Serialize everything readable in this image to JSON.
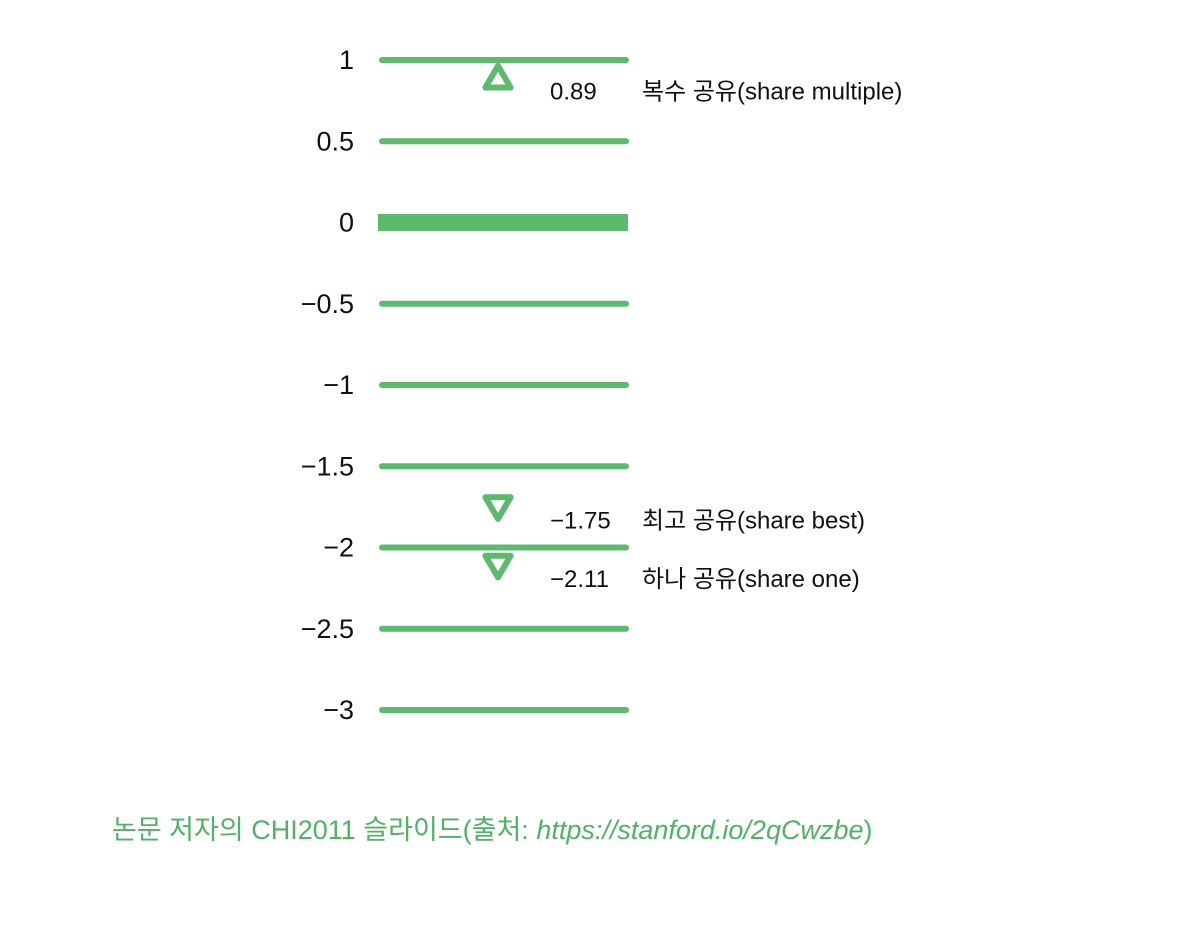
{
  "chart_data": {
    "type": "scatter",
    "ticks": [
      {
        "value": 1,
        "label": "1"
      },
      {
        "value": 0.5,
        "label": "0.5"
      },
      {
        "value": 0,
        "label": "0"
      },
      {
        "value": -0.5,
        "label": "−0.5"
      },
      {
        "value": -1,
        "label": "−1"
      },
      {
        "value": -1.5,
        "label": "−1.5"
      },
      {
        "value": -2,
        "label": "−2"
      },
      {
        "value": -2.5,
        "label": "−2.5"
      },
      {
        "value": -3,
        "label": "−3"
      }
    ],
    "ylim": [
      -3,
      1
    ],
    "points": [
      {
        "value": 0.89,
        "value_label": "0.89",
        "label": "복수 공유(share multiple)",
        "marker": "triangle-up"
      },
      {
        "value": -1.75,
        "value_label": "−1.75",
        "label": "최고 공유(share best)",
        "marker": "triangle-down"
      },
      {
        "value": -2.11,
        "value_label": "−2.11",
        "label": "하나 공유(share one)",
        "marker": "triangle-down"
      }
    ],
    "line_color": "#5cb96e",
    "marker_color": "#5cb96e",
    "zero_line_emphasized": true
  },
  "caption": {
    "text": "논문 저자의 CHI2011 슬라이드(출처: ",
    "link": "https://stanford.io/2qCwzbe",
    "close": ")",
    "color": "#4fb265"
  }
}
